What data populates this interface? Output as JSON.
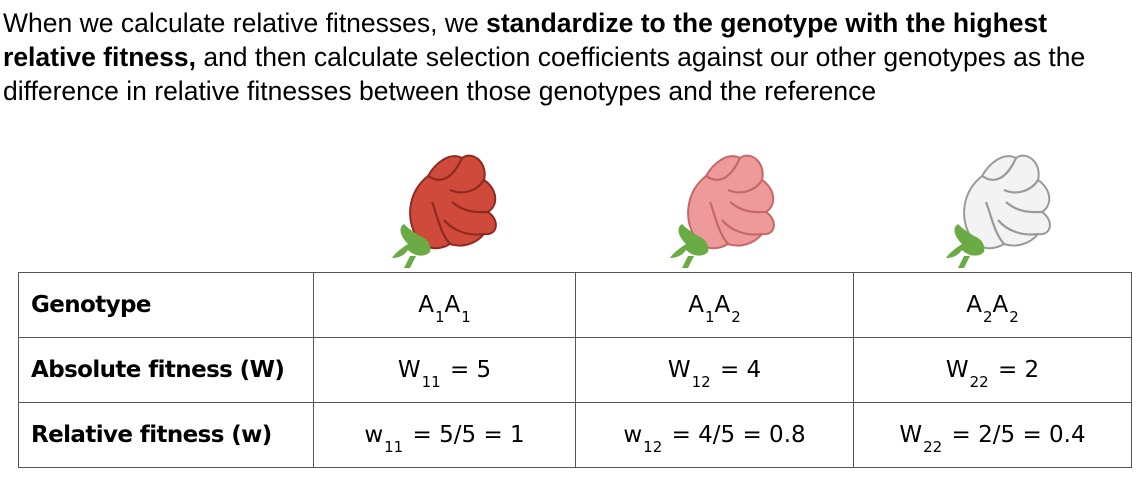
{
  "intro": {
    "part1": "When we calculate relative fitnesses, we ",
    "bold": "standardize to the genotype with the highest relative fitness,",
    "part2": " and then calculate selection coefficients against our other genotypes as the difference in relative fitnesses between those genotypes and the reference"
  },
  "flowers": [
    {
      "name": "red-snapdragon",
      "petal": "#d04a3c",
      "petal_dark": "#8f2a20",
      "stem": "#6aab45"
    },
    {
      "name": "pink-snapdragon",
      "petal": "#ee9a9a",
      "petal_dark": "#c56868",
      "stem": "#6aab45"
    },
    {
      "name": "white-snapdragon",
      "petal": "#f3f3f3",
      "petal_dark": "#9a9a9a",
      "stem": "#6aab45"
    }
  ],
  "table": {
    "rows": [
      {
        "label": "Genotype",
        "cells": [
          {
            "parts": [
              "A",
              "1",
              "A",
              "1"
            ]
          },
          {
            "parts": [
              "A",
              "1",
              "A",
              "2"
            ]
          },
          {
            "parts": [
              "A",
              "2",
              "A",
              "2"
            ]
          }
        ]
      },
      {
        "label": "Absolute fitness (W)",
        "cells": [
          {
            "main": "W",
            "sub": "11",
            "rest": "= 5"
          },
          {
            "main": "W",
            "sub": "12",
            "rest": "= 4"
          },
          {
            "main": "W",
            "sub": "22",
            "rest": "= 2"
          }
        ]
      },
      {
        "label": "Relative fitness (w)",
        "cells": [
          {
            "main": "w",
            "sub": "11",
            "rest": "= 5/5 = 1"
          },
          {
            "main": "w",
            "sub": "12",
            "rest": "= 4/5 = 0.8"
          },
          {
            "main": "W",
            "sub": "22",
            "rest": "= 2/5 = 0.4"
          }
        ]
      }
    ]
  }
}
